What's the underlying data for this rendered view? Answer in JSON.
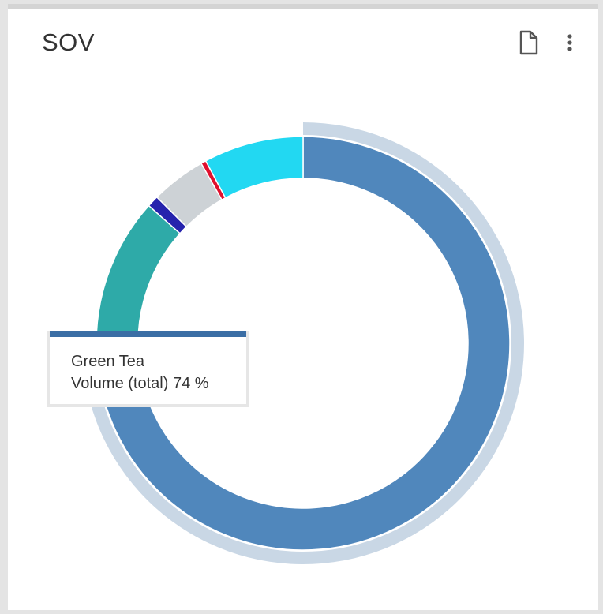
{
  "card": {
    "title": "SOV"
  },
  "toolbar": {
    "export_icon": "document-icon",
    "menu_icon": "more-vertical-icon"
  },
  "chart_data": {
    "type": "pie",
    "donut": true,
    "slices": [
      {
        "value": 74.0,
        "color": "#5087bc"
      },
      {
        "value": 12.6,
        "color": "#2eaaa8"
      },
      {
        "value": 0.9,
        "color": "#2623ad"
      },
      {
        "value": 4.3,
        "color": "#cdd2d6"
      },
      {
        "value": 0.4,
        "color": "#e0102e"
      },
      {
        "value": 7.8,
        "color": "#22d8f2"
      }
    ],
    "highlighted_color": "#c9d7e5"
  },
  "tooltip": {
    "accent_color": "#3b6ea5",
    "series_name": "Green Tea",
    "value_text": "Volume (total) 74 %"
  }
}
